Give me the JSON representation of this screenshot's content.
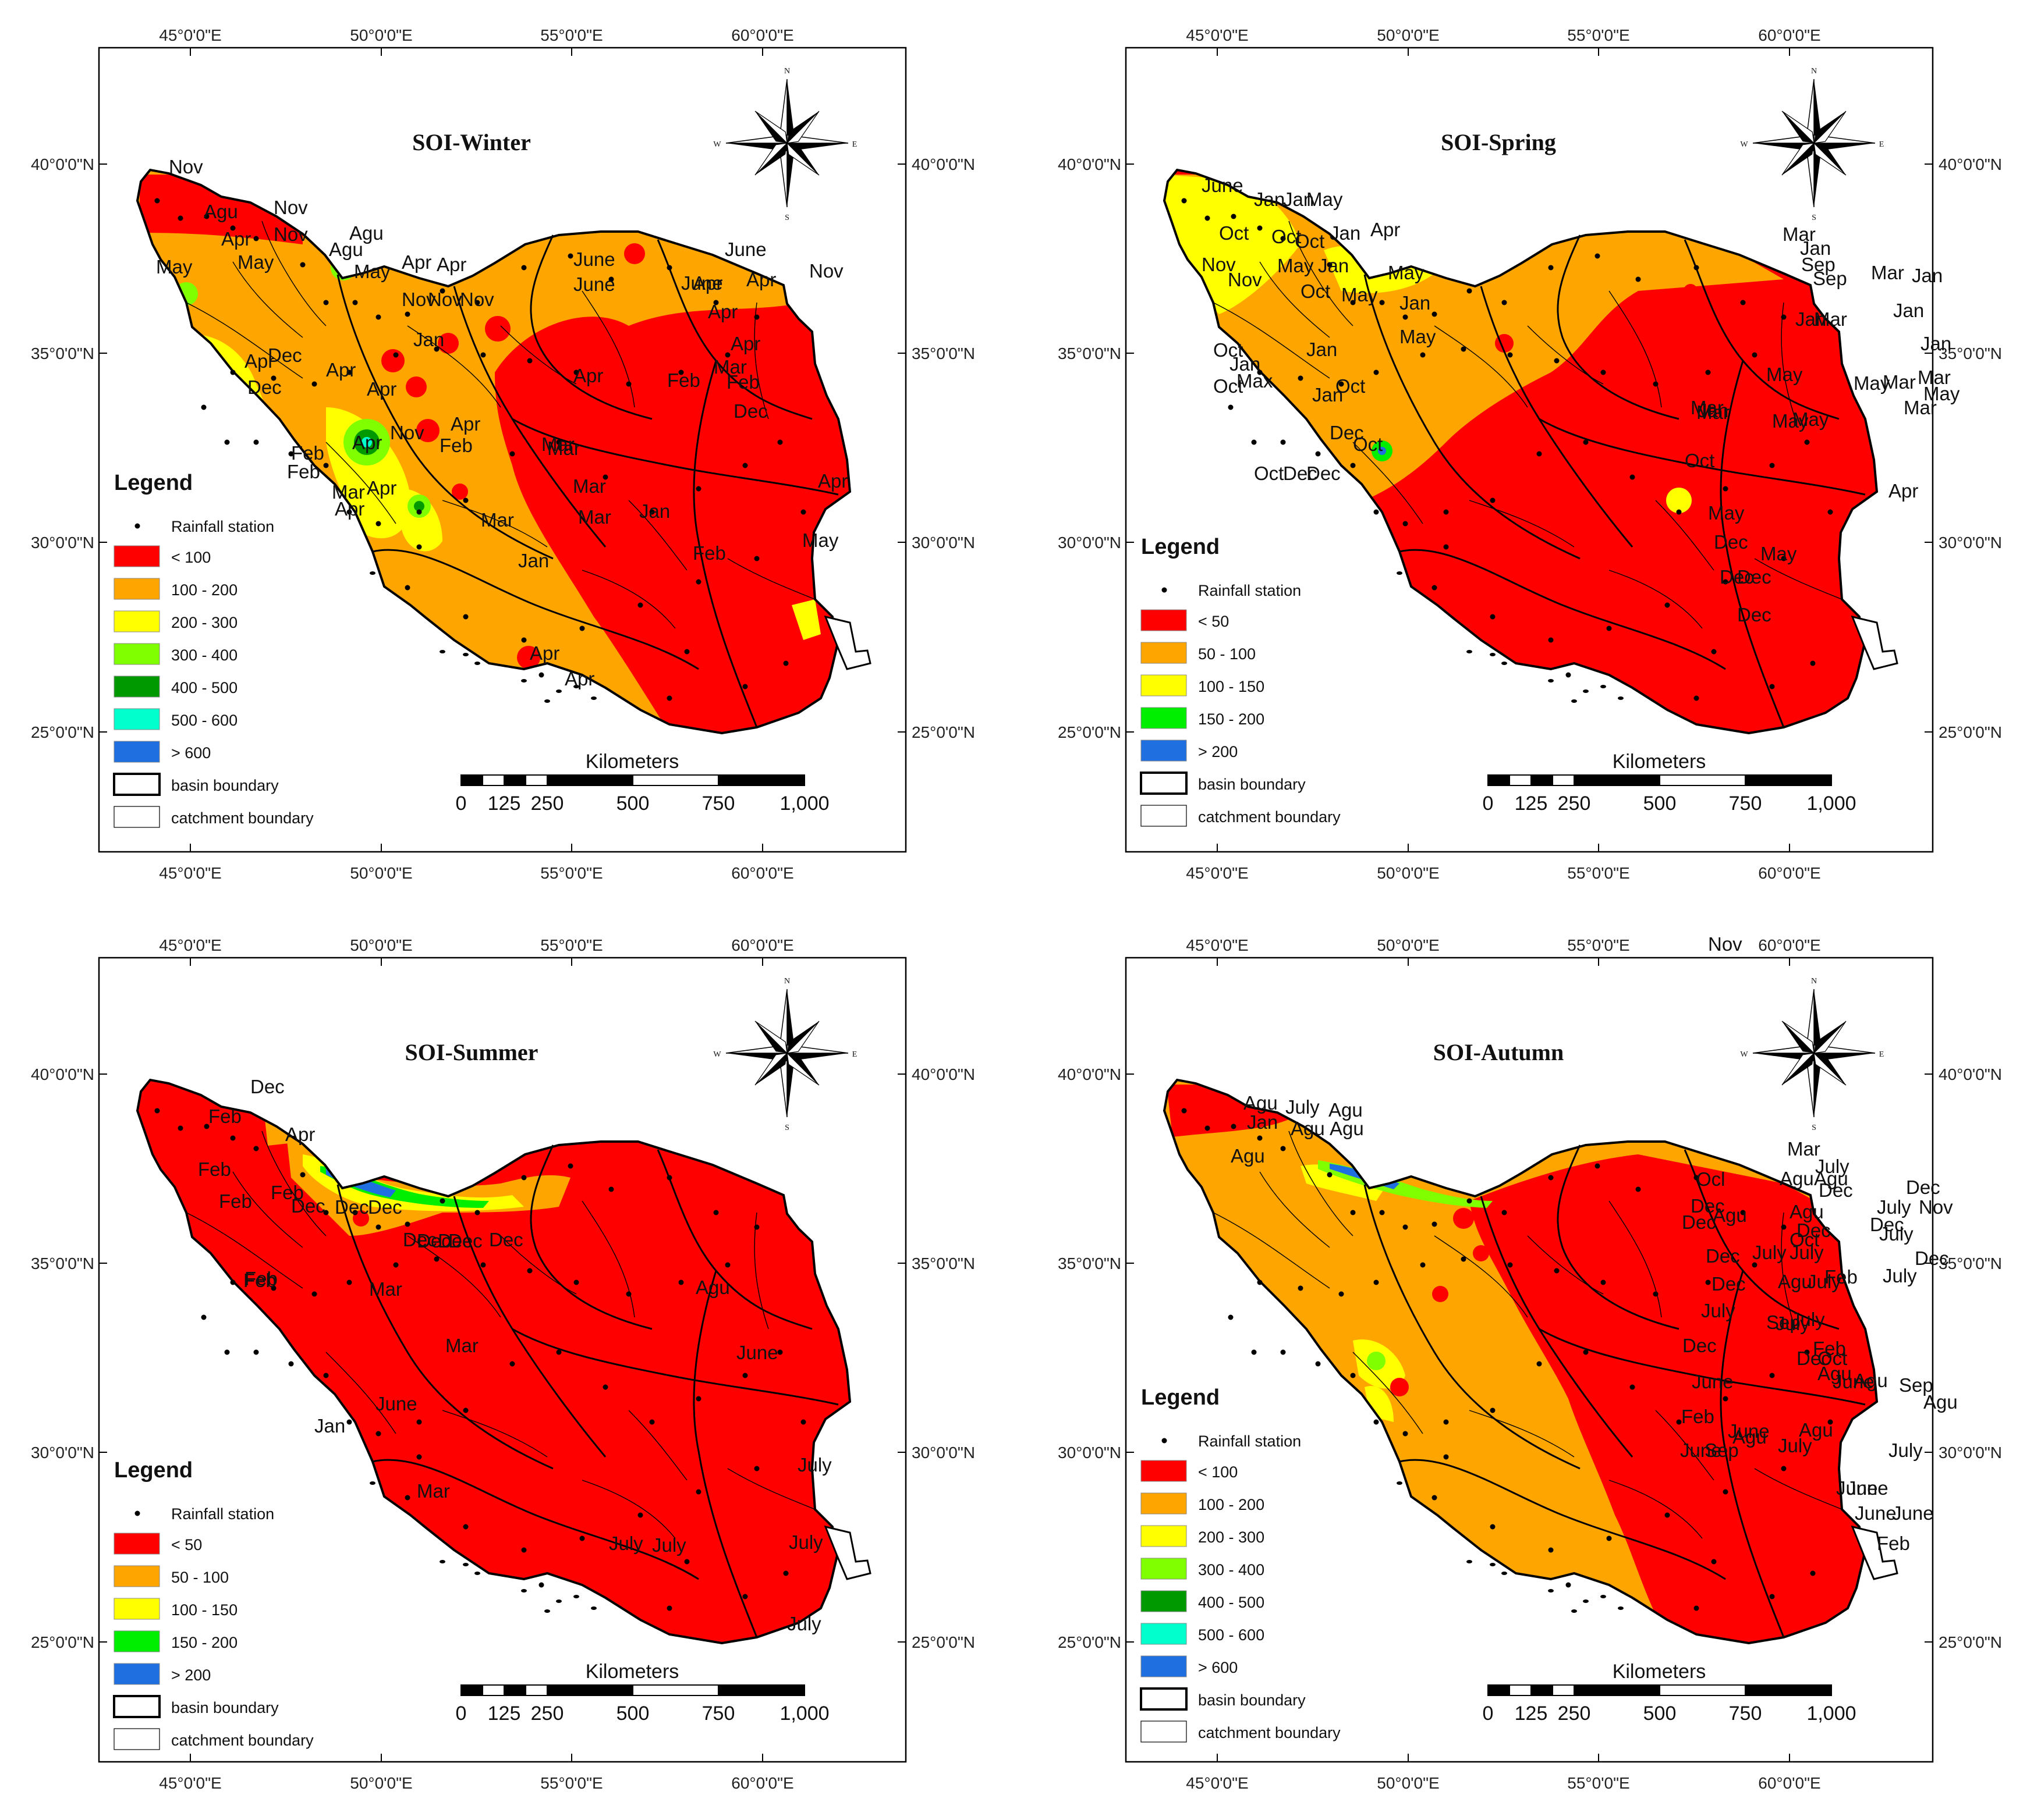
{
  "axes": {
    "lon_ticks": [
      "45°0'0\"E",
      "50°0'0\"E",
      "55°0'0\"E",
      "60°0'0\"E"
    ],
    "lat_ticks": [
      "40°0'0\"N",
      "35°0'0\"N",
      "30°0'0\"N",
      "25°0'0\"N"
    ]
  },
  "colors": {
    "red": "#ff0000",
    "orange": "#ffa500",
    "yellow": "#ffff00",
    "lightgreen": "#7fff00",
    "green": "#009900",
    "cyan": "#00ffcc",
    "blue": "#1f6fe0",
    "brightgreen": "#00ee00"
  },
  "compass": {
    "n": "N",
    "s": "S",
    "e": "E",
    "w": "W"
  },
  "scale": {
    "title": "Kilometers",
    "labels": [
      "0",
      "125",
      "250",
      "500",
      "750",
      "1,000"
    ]
  },
  "legend_common": {
    "title": "Legend",
    "station": "Rainfall station",
    "basin": "basin boundary",
    "catchment": "catchment boundary"
  },
  "panels": [
    {
      "title": "SOI-Winter",
      "classes": [
        {
          "label": "< 100",
          "color": "#ff0000"
        },
        {
          "label": "100 - 200",
          "color": "#ffa500"
        },
        {
          "label": "200 - 300",
          "color": "#ffff00"
        },
        {
          "label": "300 - 400",
          "color": "#7fff00"
        },
        {
          "label": "400 - 500",
          "color": "#009900"
        },
        {
          "label": "500 - 600",
          "color": "#00ffcc"
        },
        {
          "label": "> 600",
          "color": "#1f6fe0"
        }
      ],
      "months": [
        "Nov",
        "Agu",
        "Nov",
        "Agu",
        "Agu",
        "Apr",
        "Nov",
        "May",
        "May",
        "May",
        "Apr",
        "Apr",
        "June",
        "June",
        "Nov",
        "Nov",
        "Nov",
        "June",
        "Nov",
        "Apr",
        "June",
        "Apr",
        "Jan",
        "Apr",
        "Dec",
        "Apr",
        "Apr",
        "Dec",
        "Apr",
        "Apr",
        "Apr",
        "Feb",
        "Mar",
        "Apr",
        "Feb",
        "Dec",
        "Nov",
        "Apr",
        "Feb",
        "Mar",
        "Feb",
        "Apr",
        "Feb",
        "Mar",
        "Mar",
        "Jan",
        "Mar",
        "Apr",
        "Mar",
        "Feb",
        "Jan",
        "Mar",
        "May",
        "Apr",
        "Apr",
        "Apr"
      ]
    },
    {
      "title": "SOI-Spring",
      "classes": [
        {
          "label": "< 50",
          "color": "#ff0000"
        },
        {
          "label": "50 - 100",
          "color": "#ffa500"
        },
        {
          "label": "100 - 150",
          "color": "#ffff00"
        },
        {
          "label": "150 - 200",
          "color": "#00ee00"
        },
        {
          "label": "> 200",
          "color": "#1f6fe0"
        }
      ],
      "months": [
        "June",
        "Jan",
        "Jan",
        "May",
        "Oct",
        "Oct",
        "Oct",
        "Jan",
        "Mar",
        "Jan",
        "Nov",
        "Nov",
        "May",
        "Apr",
        "May",
        "Sep",
        "Jan",
        "Mar",
        "Jan",
        "Sep",
        "Oct",
        "May",
        "Jan",
        "Jan",
        "Jan",
        "Mar",
        "Jan",
        "Mar",
        "May",
        "May",
        "Oct",
        "Jan",
        "Jan",
        "Oct",
        "Max",
        "May",
        "Oct",
        "Jan",
        "Mar",
        "May",
        "May",
        "Mar",
        "Mar",
        "Jan",
        "Dec",
        "May",
        "Oct",
        "Oct",
        "Dec",
        "Dec",
        "Mar",
        "Apr",
        "Oct",
        "May",
        "Dec",
        "May",
        "Dec",
        "Dec",
        "Dec"
      ]
    },
    {
      "title": "SOI-Summer",
      "classes": [
        {
          "label": "< 50",
          "color": "#ff0000"
        },
        {
          "label": "50 - 100",
          "color": "#ffa500"
        },
        {
          "label": "100 - 150",
          "color": "#ffff00"
        },
        {
          "label": "150 - 200",
          "color": "#00ee00"
        },
        {
          "label": "> 200",
          "color": "#1f6fe0"
        }
      ],
      "months": [
        "Dec",
        "Feb",
        "Apr",
        "Feb",
        "Feb",
        "Dec",
        "Feb",
        "Dec",
        "Dec",
        "Dec",
        "Dec",
        "Dec",
        "Feb",
        "Dec",
        "Dec",
        "Feb",
        "Mar",
        "Agu",
        "Mar",
        "June",
        "June",
        "Jan",
        "Mar",
        "July",
        "July",
        "July",
        "July",
        "July"
      ]
    },
    {
      "title": "SOI-Autumn",
      "classes": [
        {
          "label": "< 100",
          "color": "#ff0000"
        },
        {
          "label": "100 - 200",
          "color": "#ffa500"
        },
        {
          "label": "200 - 300",
          "color": "#ffff00"
        },
        {
          "label": "300 - 400",
          "color": "#7fff00"
        },
        {
          "label": "400 - 500",
          "color": "#009900"
        },
        {
          "label": "500 - 600",
          "color": "#00ffcc"
        },
        {
          "label": "> 600",
          "color": "#1f6fe0"
        }
      ],
      "months": [
        "Nov",
        "Agu",
        "July",
        "Agu",
        "Jan",
        "Agu",
        "Agu",
        "Mar",
        "July",
        "Agu",
        "Agu",
        "Agu",
        "Dec",
        "Dec",
        "Ocl",
        "Nov",
        "July",
        "Agu",
        "Agu",
        "July",
        "Dec",
        "Dec",
        "Dec",
        "Dec",
        "Dec",
        "Agu",
        "July",
        "Dec",
        "Dec",
        "July",
        "July",
        "Oct",
        "July",
        "July",
        "Feb",
        "Sep",
        "July",
        "Feb",
        "Agu",
        "July",
        "Dec",
        "Oct",
        "Dec",
        "June",
        "Agu",
        "Sep",
        "June",
        "Agu",
        "Feb",
        "June",
        "June",
        "Agu",
        "July",
        "Sep",
        "July",
        "Agu",
        "June",
        "June",
        "June",
        "Feb",
        "June"
      ]
    }
  ]
}
